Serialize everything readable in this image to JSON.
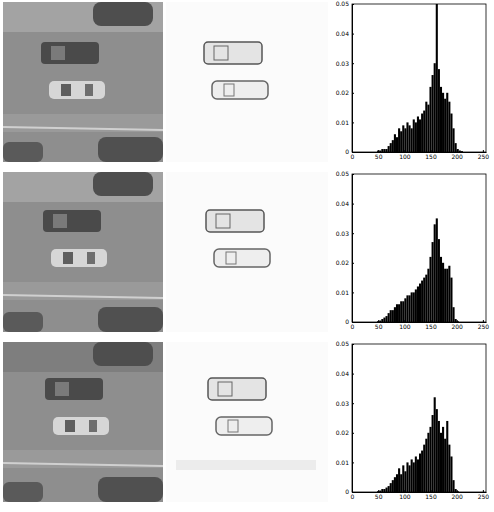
{
  "chart_data": [
    {
      "type": "histogram",
      "color": "#000000",
      "bins": [
        0,
        4,
        8,
        12,
        16,
        20,
        24,
        28,
        32,
        36,
        40,
        44,
        48,
        52,
        56,
        60,
        64,
        68,
        72,
        76,
        80,
        84,
        88,
        92,
        96,
        100,
        104,
        108,
        112,
        116,
        120,
        124,
        128,
        132,
        136,
        140,
        144,
        148,
        152,
        156,
        160,
        164,
        168,
        172,
        176,
        180,
        184,
        188,
        192,
        196,
        200,
        204,
        208,
        212,
        216,
        220,
        224,
        228,
        232,
        236,
        240,
        244,
        248,
        252,
        256
      ],
      "values": [
        0,
        0,
        0,
        0,
        0,
        0,
        0,
        0,
        0,
        0,
        0,
        0,
        0.0005,
        0.0005,
        0.001,
        0.001,
        0.001,
        0.002,
        0.003,
        0.004,
        0.006,
        0.005,
        0.008,
        0.007,
        0.009,
        0.008,
        0.01,
        0.009,
        0.008,
        0.011,
        0.01,
        0.012,
        0.011,
        0.013,
        0.014,
        0.017,
        0.016,
        0.022,
        0.026,
        0.03,
        0.05,
        0.028,
        0.022,
        0.02,
        0.018,
        0.02,
        0.017,
        0.013,
        0.008,
        0.003,
        0.001,
        0.0005,
        0.0003,
        0,
        0,
        0,
        0,
        0,
        0,
        0,
        0,
        0,
        0,
        0
      ],
      "xlim": [
        0,
        256
      ],
      "ylim": [
        0,
        0.05
      ],
      "xticks": [
        0,
        50,
        100,
        150,
        200,
        250
      ],
      "yticks": [
        0,
        0.01,
        0.02,
        0.03,
        0.04,
        0.05
      ]
    },
    {
      "type": "histogram",
      "color": "#000000",
      "bins": [
        0,
        4,
        8,
        12,
        16,
        20,
        24,
        28,
        32,
        36,
        40,
        44,
        48,
        52,
        56,
        60,
        64,
        68,
        72,
        76,
        80,
        84,
        88,
        92,
        96,
        100,
        104,
        108,
        112,
        116,
        120,
        124,
        128,
        132,
        136,
        140,
        144,
        148,
        152,
        156,
        160,
        164,
        168,
        172,
        176,
        180,
        184,
        188,
        192,
        196,
        200,
        204,
        208,
        212,
        216,
        220,
        224,
        228,
        232,
        236,
        240,
        244,
        248,
        252,
        256
      ],
      "values": [
        0,
        0,
        0,
        0,
        0,
        0,
        0,
        0,
        0,
        0,
        0,
        0,
        0.0003,
        0.0005,
        0.001,
        0.0015,
        0.002,
        0.003,
        0.004,
        0.004,
        0.005,
        0.006,
        0.006,
        0.007,
        0.007,
        0.008,
        0.009,
        0.009,
        0.01,
        0.01,
        0.011,
        0.012,
        0.013,
        0.014,
        0.015,
        0.016,
        0.018,
        0.022,
        0.027,
        0.033,
        0.035,
        0.028,
        0.022,
        0.02,
        0.018,
        0.018,
        0.019,
        0.015,
        0.005,
        0.001,
        0.0003,
        0,
        0,
        0,
        0,
        0,
        0,
        0,
        0,
        0,
        0,
        0,
        0,
        0
      ],
      "xlim": [
        0,
        256
      ],
      "ylim": [
        0,
        0.05
      ],
      "xticks": [
        0,
        50,
        100,
        150,
        200,
        250
      ],
      "yticks": [
        0,
        0.01,
        0.02,
        0.03,
        0.04,
        0.05
      ]
    },
    {
      "type": "histogram",
      "color": "#000000",
      "bins": [
        0,
        4,
        8,
        12,
        16,
        20,
        24,
        28,
        32,
        36,
        40,
        44,
        48,
        52,
        56,
        60,
        64,
        68,
        72,
        76,
        80,
        84,
        88,
        92,
        96,
        100,
        104,
        108,
        112,
        116,
        120,
        124,
        128,
        132,
        136,
        140,
        144,
        148,
        152,
        156,
        160,
        164,
        168,
        172,
        176,
        180,
        184,
        188,
        192,
        196,
        200,
        204,
        208,
        212,
        216,
        220,
        224,
        228,
        232,
        236,
        240,
        244,
        248,
        252,
        256
      ],
      "values": [
        0,
        0,
        0,
        0,
        0,
        0,
        0,
        0,
        0,
        0,
        0,
        0,
        0.0003,
        0.0005,
        0.001,
        0.001,
        0.0015,
        0.002,
        0.003,
        0.004,
        0.005,
        0.006,
        0.008,
        0.006,
        0.009,
        0.007,
        0.01,
        0.009,
        0.011,
        0.01,
        0.012,
        0.011,
        0.013,
        0.014,
        0.016,
        0.018,
        0.02,
        0.022,
        0.026,
        0.032,
        0.028,
        0.024,
        0.02,
        0.022,
        0.018,
        0.024,
        0.016,
        0.012,
        0.004,
        0.001,
        0.0003,
        0,
        0,
        0,
        0,
        0,
        0,
        0,
        0,
        0,
        0,
        0,
        0,
        0
      ],
      "xlim": [
        0,
        256
      ],
      "ylim": [
        0,
        0.05
      ],
      "xticks": [
        0,
        50,
        100,
        150,
        200,
        250
      ],
      "yticks": [
        0,
        0.01,
        0.02,
        0.03,
        0.04,
        0.05
      ]
    }
  ]
}
